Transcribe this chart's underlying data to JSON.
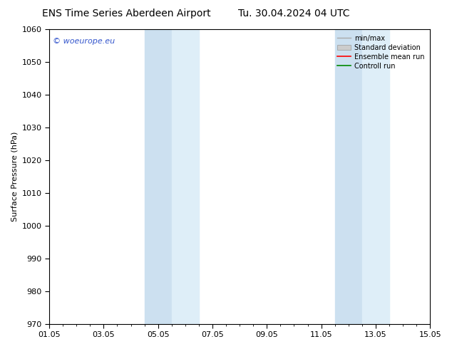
{
  "title_left": "ENS Time Series Aberdeen Airport",
  "title_right": "Tu. 30.04.2024 04 UTC",
  "ylabel": "Surface Pressure (hPa)",
  "ylim": [
    970,
    1060
  ],
  "yticks": [
    970,
    980,
    990,
    1000,
    1010,
    1020,
    1030,
    1040,
    1050,
    1060
  ],
  "xtick_labels": [
    "01.05",
    "03.05",
    "05.05",
    "07.05",
    "09.05",
    "11.05",
    "13.05",
    "15.05"
  ],
  "shaded_bands": [
    {
      "xmin": 4.0,
      "xmax": 5.0
    },
    {
      "xmin": 5.0,
      "xmax": 5.5
    },
    {
      "xmin": 11.0,
      "xmax": 12.0
    },
    {
      "xmin": 12.0,
      "xmax": 13.0
    }
  ],
  "shade_color_dark": "#ccddf0",
  "shade_color_light": "#ddeef8",
  "watermark_text": "© woeurope.eu",
  "watermark_color": "#3355cc",
  "legend_items": [
    {
      "label": "min/max",
      "color": "#aaaaaa",
      "lw": 1.0,
      "ls": "-"
    },
    {
      "label": "Standard deviation",
      "color": "#cccccc",
      "lw": 5,
      "ls": "-"
    },
    {
      "label": "Ensemble mean run",
      "color": "#ff0000",
      "lw": 1.2,
      "ls": "-"
    },
    {
      "label": "Controll run",
      "color": "#008800",
      "lw": 1.2,
      "ls": "-"
    }
  ],
  "background_color": "#ffffff",
  "title_fontsize": 10,
  "axis_label_fontsize": 8,
  "tick_fontsize": 8
}
